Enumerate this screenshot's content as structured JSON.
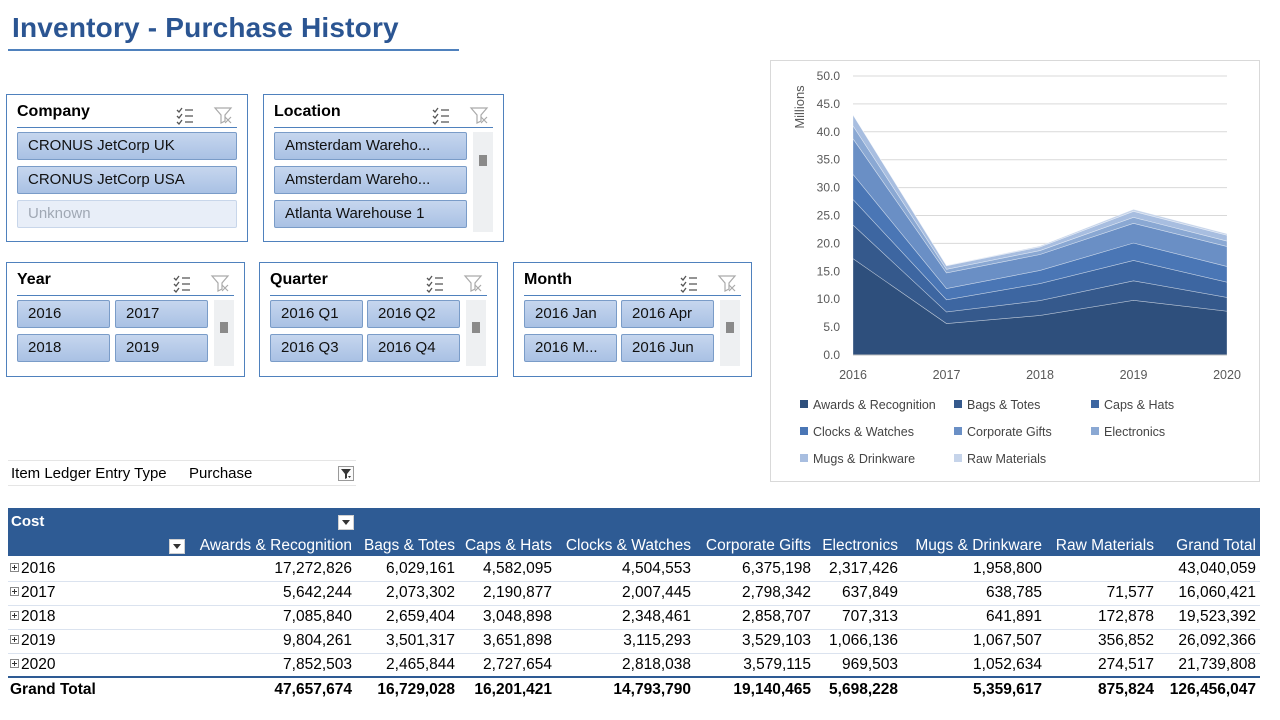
{
  "title": "Inventory - Purchase History",
  "slicers": {
    "company": {
      "title": "Company",
      "items": [
        "CRONUS JetCorp UK",
        "CRONUS JetCorp USA",
        "Unknown"
      ]
    },
    "location": {
      "title": "Location",
      "items": [
        "Amsterdam Wareho...",
        "Amsterdam Wareho...",
        "Atlanta Warehouse 1"
      ]
    },
    "year": {
      "title": "Year",
      "items": [
        "2016",
        "2017",
        "2018",
        "2019"
      ]
    },
    "quarter": {
      "title": "Quarter",
      "items": [
        "2016 Q1",
        "2016 Q2",
        "2016 Q3",
        "2016 Q4"
      ]
    },
    "month": {
      "title": "Month",
      "items": [
        "2016 Jan",
        "2016 Apr",
        "2016 M...",
        "2016 Jun"
      ]
    }
  },
  "filter": {
    "label": "Item Ledger Entry Type",
    "value": "Purchase"
  },
  "chart_data": {
    "type": "area",
    "stacked": true,
    "x": [
      "2016",
      "2017",
      "2018",
      "2019",
      "2020"
    ],
    "ylabel": "Millions",
    "ylim": [
      0,
      50
    ],
    "yticks": [
      "0.0",
      "5.0",
      "10.0",
      "15.0",
      "20.0",
      "25.0",
      "30.0",
      "35.0",
      "40.0",
      "45.0",
      "50.0"
    ],
    "legend": "bottom",
    "series": [
      {
        "name": "Awards & Recognition",
        "color": "#2e4f7c",
        "values": [
          17.27,
          5.64,
          7.09,
          9.8,
          7.85
        ]
      },
      {
        "name": "Bags & Totes",
        "color": "#35598c",
        "values": [
          6.03,
          2.07,
          2.66,
          3.5,
          2.47
        ]
      },
      {
        "name": "Caps & Hats",
        "color": "#3d66a1",
        "values": [
          4.58,
          2.19,
          3.05,
          3.65,
          2.73
        ]
      },
      {
        "name": "Clocks & Watches",
        "color": "#4a76b5",
        "values": [
          4.5,
          2.01,
          2.35,
          3.12,
          2.82
        ]
      },
      {
        "name": "Corporate Gifts",
        "color": "#6a8fc5",
        "values": [
          6.38,
          2.8,
          2.86,
          3.53,
          3.58
        ]
      },
      {
        "name": "Electronics",
        "color": "#8aa8d3",
        "values": [
          2.32,
          0.64,
          0.71,
          1.07,
          0.97
        ]
      },
      {
        "name": "Mugs & Drinkware",
        "color": "#a8bee0",
        "values": [
          1.96,
          0.64,
          0.64,
          1.07,
          1.05
        ]
      },
      {
        "name": "Raw Materials",
        "color": "#c6d4ea",
        "values": [
          0.0,
          0.07,
          0.17,
          0.36,
          0.27
        ]
      }
    ]
  },
  "pivot": {
    "measure": "Cost",
    "columns": [
      "Awards & Recognition",
      "Bags & Totes",
      "Caps & Hats",
      "Clocks & Watches",
      "Corporate Gifts",
      "Electronics",
      "Mugs & Drinkware",
      "Raw Materials",
      "Grand Total"
    ],
    "rows": [
      {
        "label": "2016",
        "values": [
          "17,272,826",
          "6,029,161",
          "4,582,095",
          "4,504,553",
          "6,375,198",
          "2,317,426",
          "1,958,800",
          "",
          "43,040,059"
        ]
      },
      {
        "label": "2017",
        "values": [
          "5,642,244",
          "2,073,302",
          "2,190,877",
          "2,007,445",
          "2,798,342",
          "637,849",
          "638,785",
          "71,577",
          "16,060,421"
        ]
      },
      {
        "label": "2018",
        "values": [
          "7,085,840",
          "2,659,404",
          "3,048,898",
          "2,348,461",
          "2,858,707",
          "707,313",
          "641,891",
          "172,878",
          "19,523,392"
        ]
      },
      {
        "label": "2019",
        "values": [
          "9,804,261",
          "3,501,317",
          "3,651,898",
          "3,115,293",
          "3,529,103",
          "1,066,136",
          "1,067,507",
          "356,852",
          "26,092,366"
        ]
      },
      {
        "label": "2020",
        "values": [
          "7,852,503",
          "2,465,844",
          "2,727,654",
          "2,818,038",
          "3,579,115",
          "969,503",
          "1,052,634",
          "274,517",
          "21,739,808"
        ]
      }
    ],
    "total": {
      "label": "Grand Total",
      "values": [
        "47,657,674",
        "16,729,028",
        "16,201,421",
        "14,793,790",
        "19,140,465",
        "5,698,228",
        "5,359,617",
        "875,824",
        "126,456,047"
      ]
    }
  }
}
